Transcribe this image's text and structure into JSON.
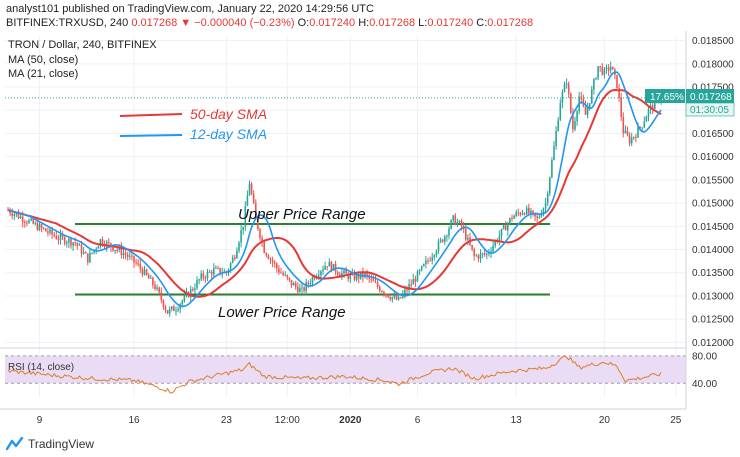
{
  "header": {
    "line1": "analyst101 published on TradingView.com, January 22, 2020 14:29:56 UTC",
    "symbol": "BITFINEX:TRXUSD, 240",
    "last": "0.017268",
    "change": "−0.000040 (−0.23%)",
    "o_label": "O:",
    "o": "0.017240",
    "h_label": "H:",
    "h": "0.017268",
    "l_label": "L:",
    "l": "0.017240",
    "c_label": "C:",
    "c": "0.017268"
  },
  "legend": {
    "title": "TRON / Dollar, 240, BITFINEX",
    "ma50": "MA (50, close)",
    "ma21": "MA (21, close)",
    "sma50_note": "50-day SMA",
    "sma12_note": "12-day SMA"
  },
  "annotations": {
    "upper": "Upper Price Range",
    "lower": "Lower Price Range"
  },
  "price_tag": {
    "pct": "17.65%",
    "price": "0.017268",
    "countdown": "01:30:05"
  },
  "rsi": {
    "label": "RSI (14, close)",
    "levels": [
      "80.00",
      "40.00"
    ]
  },
  "footer": {
    "brand": "TradingView"
  },
  "colors": {
    "up": "#26a69a",
    "down": "#ef5350",
    "ma50": "#e53935",
    "ma21": "#2196f3",
    "range": "#2e7d32",
    "rsi": "#e07b2a",
    "rsi_band": "#eadcf5",
    "tag": "#26a69a"
  },
  "chart_data": {
    "type": "candlestick",
    "title": "TRON / Dollar, 240, BITFINEX",
    "x_ticks": [
      "9",
      "16",
      "23",
      "12:00",
      "2020",
      "6",
      "13",
      "20",
      "25"
    ],
    "y_ticks": [
      "0.018500",
      "0.018000",
      "0.017500",
      "0.017000",
      "0.016500",
      "0.016000",
      "0.015500",
      "0.015000",
      "0.014500",
      "0.014000",
      "0.013500",
      "0.013000",
      "0.012500",
      "0.012000"
    ],
    "ylim": [
      0.0119,
      0.0186
    ],
    "key_close_path": [
      [
        0,
        0.01485
      ],
      [
        8,
        0.01465
      ],
      [
        16,
        0.01445
      ],
      [
        24,
        0.01425
      ],
      [
        32,
        0.01415
      ],
      [
        38,
        0.0138
      ],
      [
        44,
        0.0142
      ],
      [
        50,
        0.01405
      ],
      [
        56,
        0.0139
      ],
      [
        62,
        0.01365
      ],
      [
        70,
        0.0132
      ],
      [
        76,
        0.01265
      ],
      [
        80,
        0.01275
      ],
      [
        86,
        0.01305
      ],
      [
        92,
        0.0134
      ],
      [
        98,
        0.01355
      ],
      [
        104,
        0.0135
      ],
      [
        108,
        0.0139
      ],
      [
        112,
        0.01455
      ],
      [
        115,
        0.01545
      ],
      [
        118,
        0.01465
      ],
      [
        122,
        0.014
      ],
      [
        128,
        0.0136
      ],
      [
        134,
        0.0133
      ],
      [
        140,
        0.0131
      ],
      [
        146,
        0.01345
      ],
      [
        152,
        0.0137
      ],
      [
        158,
        0.0135
      ],
      [
        164,
        0.0134
      ],
      [
        170,
        0.01345
      ],
      [
        176,
        0.0132
      ],
      [
        182,
        0.013
      ],
      [
        186,
        0.0129
      ],
      [
        190,
        0.01315
      ],
      [
        196,
        0.0135
      ],
      [
        202,
        0.0139
      ],
      [
        208,
        0.0143
      ],
      [
        212,
        0.01465
      ],
      [
        216,
        0.0145
      ],
      [
        222,
        0.01385
      ],
      [
        228,
        0.0139
      ],
      [
        234,
        0.0143
      ],
      [
        240,
        0.0147
      ],
      [
        246,
        0.01485
      ],
      [
        252,
        0.01465
      ],
      [
        256,
        0.015
      ],
      [
        260,
        0.0162
      ],
      [
        263,
        0.0172
      ],
      [
        266,
        0.01765
      ],
      [
        269,
        0.0166
      ],
      [
        272,
        0.0173
      ],
      [
        275,
        0.0169
      ],
      [
        278,
        0.0174
      ],
      [
        281,
        0.01795
      ],
      [
        284,
        0.0178
      ],
      [
        287,
        0.01795
      ],
      [
        290,
        0.01755
      ],
      [
        293,
        0.01655
      ],
      [
        296,
        0.01635
      ],
      [
        299,
        0.0165
      ],
      [
        302,
        0.0167
      ],
      [
        305,
        0.017
      ],
      [
        308,
        0.01715
      ],
      [
        310,
        0.01727
      ]
    ],
    "upper_range": 0.01455,
    "lower_range": 0.01303,
    "rsi_ylim": [
      20,
      90
    ],
    "rsi_levels": [
      80,
      40
    ],
    "rsi_key_path": [
      [
        0,
        58
      ],
      [
        20,
        52
      ],
      [
        40,
        47
      ],
      [
        60,
        44
      ],
      [
        72,
        34
      ],
      [
        78,
        28
      ],
      [
        86,
        42
      ],
      [
        100,
        52
      ],
      [
        112,
        60
      ],
      [
        115,
        68
      ],
      [
        122,
        50
      ],
      [
        140,
        47
      ],
      [
        160,
        50
      ],
      [
        180,
        44
      ],
      [
        186,
        39
      ],
      [
        200,
        55
      ],
      [
        212,
        62
      ],
      [
        222,
        47
      ],
      [
        240,
        58
      ],
      [
        256,
        62
      ],
      [
        262,
        72
      ],
      [
        266,
        80
      ],
      [
        272,
        63
      ],
      [
        284,
        71
      ],
      [
        290,
        65
      ],
      [
        294,
        44
      ],
      [
        300,
        47
      ],
      [
        310,
        53
      ]
    ]
  }
}
